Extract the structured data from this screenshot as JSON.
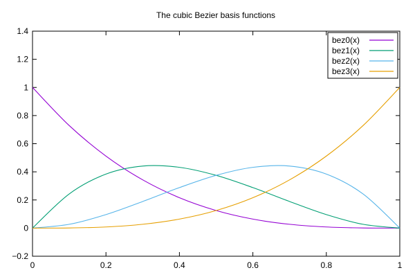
{
  "chart_data": {
    "type": "line",
    "title": "The cubic Bezier basis functions",
    "xlabel": "",
    "ylabel": "",
    "xlim": [
      0,
      1
    ],
    "ylim": [
      -0.2,
      1.4
    ],
    "xticks": [
      0,
      0.2,
      0.4,
      0.6,
      0.8,
      1
    ],
    "yticks": [
      -0.2,
      0,
      0.2,
      0.4,
      0.6,
      0.8,
      1,
      1.2,
      1.4
    ],
    "xtick_labels": [
      "0",
      "0.2",
      "0.4",
      "0.6",
      "0.8",
      "1"
    ],
    "ytick_labels": [
      "−0.2",
      "0",
      "0.2",
      "0.4",
      "0.6",
      "0.8",
      "1",
      "1.2",
      "1.4"
    ],
    "grid": false,
    "legend_position": "top-right",
    "x": [
      0,
      0.1,
      0.2,
      0.3,
      0.4,
      0.5,
      0.6,
      0.7,
      0.8,
      0.9,
      1.0
    ],
    "series": [
      {
        "name": "bez0(x)",
        "color": "#9400d3",
        "values": [
          1.0,
          0.729,
          0.512,
          0.343,
          0.216,
          0.125,
          0.064,
          0.027,
          0.008,
          0.001,
          0.0
        ]
      },
      {
        "name": "bez1(x)",
        "color": "#009e73",
        "values": [
          0.0,
          0.243,
          0.384,
          0.441,
          0.432,
          0.375,
          0.288,
          0.189,
          0.096,
          0.027,
          0.0
        ]
      },
      {
        "name": "bez2(x)",
        "color": "#56b4e9",
        "values": [
          0.0,
          0.027,
          0.096,
          0.189,
          0.288,
          0.375,
          0.432,
          0.441,
          0.384,
          0.243,
          0.0
        ]
      },
      {
        "name": "bez3(x)",
        "color": "#e69f00",
        "values": [
          0.0,
          0.001,
          0.008,
          0.027,
          0.064,
          0.125,
          0.216,
          0.343,
          0.512,
          0.729,
          1.0
        ]
      }
    ]
  }
}
